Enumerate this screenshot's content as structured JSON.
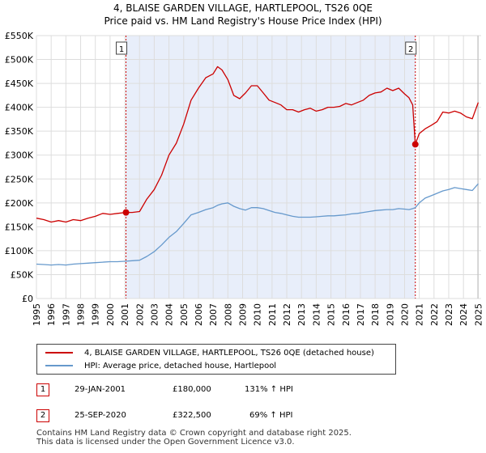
{
  "header": {
    "title_line1": "4, BLAISE GARDEN VILLAGE, HARTLEPOOL, TS26 0QE",
    "title_line2": "Price paid vs. HM Land Registry's House Price Index (HPI)"
  },
  "colors": {
    "property": "#cc0000",
    "hpi": "#6699cc",
    "shade": "#e8eefa",
    "grid": "#dddddd",
    "marker_line": "#cc0000"
  },
  "chart_data": {
    "type": "line",
    "title": "Price paid vs. HM Land Registry's House Price Index (HPI)",
    "xlim": [
      1995,
      2025.2
    ],
    "ylim": [
      0,
      550000
    ],
    "y_ticks": [
      0,
      50000,
      100000,
      150000,
      200000,
      250000,
      300000,
      350000,
      400000,
      450000,
      500000,
      550000
    ],
    "y_tick_labels": [
      "£0",
      "£50K",
      "£100K",
      "£150K",
      "£200K",
      "£250K",
      "£300K",
      "£350K",
      "£400K",
      "£450K",
      "£500K",
      "£550K"
    ],
    "x_ticks": [
      1995,
      1996,
      1997,
      1998,
      1999,
      2000,
      2001,
      2002,
      2003,
      2004,
      2005,
      2006,
      2007,
      2008,
      2009,
      2010,
      2011,
      2012,
      2013,
      2014,
      2015,
      2016,
      2017,
      2018,
      2019,
      2020,
      2021,
      2022,
      2023,
      2024,
      2025
    ],
    "shaded_range": [
      2001.08,
      2020.73
    ],
    "series": [
      {
        "name": "4, BLAISE GARDEN VILLAGE, HARTLEPOOL, TS26 0QE (detached house)",
        "x": [
          1995,
          1995.5,
          1996,
          1996.5,
          1997,
          1997.5,
          1998,
          1998.5,
          1999,
          1999.5,
          2000,
          2000.5,
          2001.08,
          2001.5,
          2002,
          2002.5,
          2003,
          2003.5,
          2004,
          2004.5,
          2005,
          2005.5,
          2006,
          2006.5,
          2007,
          2007.3,
          2007.6,
          2008,
          2008.4,
          2008.8,
          2009.2,
          2009.6,
          2010,
          2010.4,
          2010.8,
          2011.2,
          2011.6,
          2012,
          2012.4,
          2012.8,
          2013.2,
          2013.6,
          2014,
          2014.4,
          2014.8,
          2015.2,
          2015.6,
          2016,
          2016.4,
          2016.8,
          2017.2,
          2017.6,
          2018,
          2018.4,
          2018.8,
          2019.2,
          2019.6,
          2020,
          2020.3,
          2020.55,
          2020.73,
          2021,
          2021.4,
          2021.8,
          2022.2,
          2022.6,
          2023,
          2023.4,
          2023.8,
          2024.2,
          2024.6,
          2025
        ],
        "y": [
          168000,
          165000,
          160000,
          163000,
          160000,
          165000,
          163000,
          168000,
          172000,
          178000,
          176000,
          178000,
          180000,
          180000,
          182000,
          208000,
          228000,
          258000,
          300000,
          325000,
          365000,
          415000,
          440000,
          462000,
          470000,
          485000,
          478000,
          458000,
          425000,
          418000,
          430000,
          445000,
          445000,
          430000,
          415000,
          410000,
          405000,
          395000,
          395000,
          390000,
          395000,
          398000,
          392000,
          395000,
          400000,
          400000,
          402000,
          408000,
          405000,
          410000,
          415000,
          425000,
          430000,
          432000,
          440000,
          435000,
          440000,
          428000,
          420000,
          405000,
          322500,
          345000,
          355000,
          362000,
          370000,
          390000,
          388000,
          392000,
          388000,
          380000,
          376000,
          410000
        ]
      },
      {
        "name": "HPI: Average price, detached house, Hartlepool",
        "x": [
          1995,
          1995.5,
          1996,
          1996.5,
          1997,
          1997.5,
          1998,
          1998.5,
          1999,
          1999.5,
          2000,
          2000.5,
          2001.08,
          2001.5,
          2002,
          2002.5,
          2003,
          2003.5,
          2004,
          2004.5,
          2005,
          2005.5,
          2006,
          2006.5,
          2007,
          2007.3,
          2007.6,
          2008,
          2008.4,
          2008.8,
          2009.2,
          2009.6,
          2010,
          2010.4,
          2010.8,
          2011.2,
          2011.6,
          2012,
          2012.4,
          2012.8,
          2013.2,
          2013.6,
          2014,
          2014.4,
          2014.8,
          2015.2,
          2015.6,
          2016,
          2016.4,
          2016.8,
          2017.2,
          2017.6,
          2018,
          2018.4,
          2018.8,
          2019.2,
          2019.6,
          2020,
          2020.3,
          2020.55,
          2020.73,
          2021,
          2021.4,
          2021.8,
          2022.2,
          2022.6,
          2023,
          2023.4,
          2023.8,
          2024.2,
          2024.6,
          2025
        ],
        "y": [
          72000,
          71000,
          70000,
          71000,
          70000,
          72000,
          73000,
          74000,
          75000,
          76000,
          77000,
          77000,
          78000,
          79000,
          80000,
          88000,
          98000,
          112000,
          128000,
          140000,
          157000,
          175000,
          180000,
          186000,
          190000,
          195000,
          198000,
          200000,
          193000,
          188000,
          185000,
          190000,
          190000,
          188000,
          184000,
          180000,
          178000,
          175000,
          172000,
          170000,
          170000,
          170000,
          171000,
          172000,
          173000,
          173000,
          174000,
          175000,
          177000,
          178000,
          180000,
          182000,
          184000,
          185000,
          186000,
          186000,
          188000,
          187000,
          186000,
          188000,
          190000,
          200000,
          210000,
          215000,
          220000,
          225000,
          228000,
          232000,
          230000,
          228000,
          226000,
          240000
        ]
      }
    ],
    "sale_markers": [
      {
        "label": "1",
        "x": 2001.08,
        "y": 180000
      },
      {
        "label": "2",
        "x": 2020.73,
        "y": 322500
      }
    ]
  },
  "legend": {
    "property_label": "4, BLAISE GARDEN VILLAGE, HARTLEPOOL, TS26 0QE (detached house)",
    "hpi_label": "HPI: Average price, detached house, Hartlepool"
  },
  "transactions": [
    {
      "num": "1",
      "date": "29-JAN-2001",
      "price": "£180,000",
      "hpi": "131% ↑ HPI"
    },
    {
      "num": "2",
      "date": "25-SEP-2020",
      "price": "£322,500",
      "hpi": "69% ↑ HPI"
    }
  ],
  "footer": {
    "line1": "Contains HM Land Registry data © Crown copyright and database right 2025.",
    "line2": "This data is licensed under the Open Government Licence v3.0."
  }
}
